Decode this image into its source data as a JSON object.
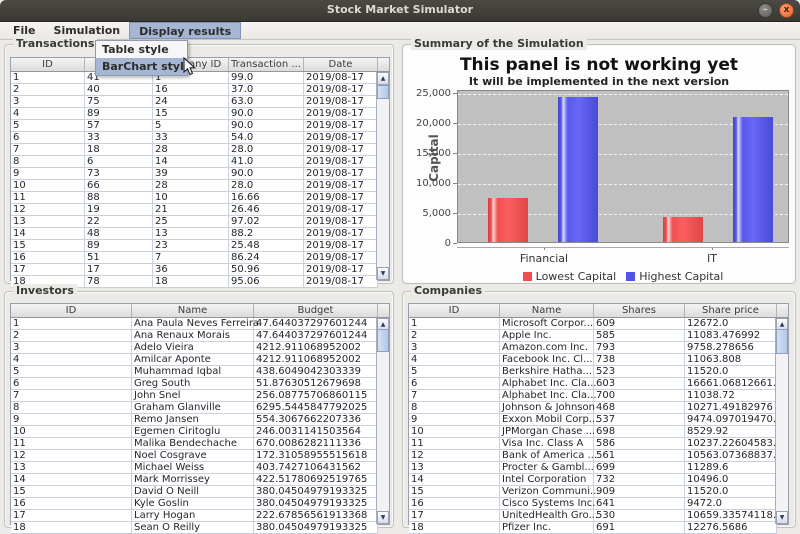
{
  "window": {
    "title": "Stock Market Simulator",
    "minimize": "–",
    "close": "x"
  },
  "menu_bar": {
    "items": [
      {
        "label": "File",
        "selected": false
      },
      {
        "label": "Simulation",
        "selected": false
      },
      {
        "label": "Display results",
        "selected": true
      }
    ]
  },
  "popup_menu": {
    "items": [
      {
        "label": "Table style",
        "highlighted": false
      },
      {
        "label": "BarChart style",
        "highlighted": true
      }
    ]
  },
  "panels": {
    "transactions": {
      "title": "Transactions",
      "columns": [
        "ID",
        "",
        "Company ID",
        "Transaction ...",
        "Date"
      ],
      "rows": [
        [
          "1",
          "41",
          "1",
          "99.0",
          "2019/08-17"
        ],
        [
          "2",
          "40",
          "16",
          "37.0",
          "2019/08-17"
        ],
        [
          "3",
          "75",
          "24",
          "63.0",
          "2019/08-17"
        ],
        [
          "4",
          "89",
          "15",
          "90.0",
          "2019/08-17"
        ],
        [
          "5",
          "57",
          "5",
          "90.0",
          "2019/08-17"
        ],
        [
          "6",
          "33",
          "33",
          "54.0",
          "2019/08-17"
        ],
        [
          "7",
          "18",
          "28",
          "28.0",
          "2019/08-17"
        ],
        [
          "8",
          "6",
          "14",
          "41.0",
          "2019/08-17"
        ],
        [
          "9",
          "73",
          "39",
          "90.0",
          "2019/08-17"
        ],
        [
          "10",
          "66",
          "28",
          "28.0",
          "2019/08-17"
        ],
        [
          "11",
          "88",
          "10",
          "16.66",
          "2019/08-17"
        ],
        [
          "12",
          "19",
          "21",
          "26.46",
          "2019/08-17"
        ],
        [
          "13",
          "22",
          "25",
          "97.02",
          "2019/08-17"
        ],
        [
          "14",
          "48",
          "13",
          "88.2",
          "2019/08-17"
        ],
        [
          "15",
          "89",
          "23",
          "25.48",
          "2019/08-17"
        ],
        [
          "16",
          "51",
          "7",
          "86.24",
          "2019/08-17"
        ],
        [
          "17",
          "17",
          "36",
          "50.96",
          "2019/08-17"
        ],
        [
          "18",
          "78",
          "18",
          "95.06",
          "2019/08-17"
        ]
      ]
    },
    "summary": {
      "title": "Summary of the Simulation"
    },
    "investors": {
      "title": "Investors",
      "columns": [
        "ID",
        "Name",
        "Budget"
      ],
      "rows": [
        [
          "1",
          "Ana Paula Neves Ferreira",
          "47.644037297601244"
        ],
        [
          "2",
          "Ana Renaux Morais",
          "47.644037297601244"
        ],
        [
          "3",
          "Adelo Vieira",
          "4212.911068952002"
        ],
        [
          "4",
          "Amilcar Aponte",
          "4212.911068952002"
        ],
        [
          "5",
          "Muhammad Iqbal",
          "438.6049042303339"
        ],
        [
          "6",
          "Greg South",
          "51.87630512679698"
        ],
        [
          "7",
          "John Snel",
          "256.08775706860115"
        ],
        [
          "8",
          "Graham Glanville",
          "6295.5445847792025"
        ],
        [
          "9",
          "Remo Jansen",
          "554.3067662207336"
        ],
        [
          "10",
          "Egemen Ciritoglu",
          "246.0031141503564"
        ],
        [
          "11",
          "Malika Bendechache",
          "670.0086282111336"
        ],
        [
          "12",
          "Noel Cosgrave",
          "172.31058955515618"
        ],
        [
          "13",
          "Michael Weiss",
          "403.7427106431562"
        ],
        [
          "14",
          "Mark Morrissey",
          "422.51780692519765"
        ],
        [
          "15",
          "David O Neill",
          "380.04504979193325"
        ],
        [
          "16",
          "Kyle Goslin",
          "380.04504979193325"
        ],
        [
          "17",
          "Larry Hogan",
          "222.67856561913368"
        ],
        [
          "18",
          "Sean O Reilly",
          "380.04504979193325"
        ]
      ]
    },
    "companies": {
      "title": "Companies",
      "columns": [
        "ID",
        "Name",
        "Shares",
        "Share price"
      ],
      "rows": [
        [
          "1",
          "Microsoft Corpor...",
          "609",
          "12672.0"
        ],
        [
          "2",
          "Apple Inc.",
          "585",
          "11083.476992"
        ],
        [
          "3",
          "Amazon.com Inc.",
          "793",
          "9758.278656"
        ],
        [
          "4",
          "Facebook Inc. Cl...",
          "738",
          "11063.808"
        ],
        [
          "5",
          "Berkshire Hatha...",
          "523",
          "11520.0"
        ],
        [
          "6",
          "Alphabet Inc. Cla...",
          "603",
          "16661.06812661..."
        ],
        [
          "7",
          "Alphabet Inc. Cla...",
          "700",
          "11038.72"
        ],
        [
          "8",
          "Johnson & Johnson",
          "468",
          "10271.49182976"
        ],
        [
          "9",
          "Exxon Mobil Corp...",
          "537",
          "9474.097019470..."
        ],
        [
          "10",
          "JPMorgan Chase ...",
          "698",
          "8529.92"
        ],
        [
          "11",
          "Visa Inc. Class A",
          "586",
          "10237.22604583..."
        ],
        [
          "12",
          "Bank of America ...",
          "561",
          "10563.07368837..."
        ],
        [
          "13",
          "Procter & Gambl...",
          "699",
          "11289.6"
        ],
        [
          "14",
          "Intel Corporation",
          "732",
          "10496.0"
        ],
        [
          "15",
          "Verizon Communi...",
          "909",
          "11520.0"
        ],
        [
          "16",
          "Cisco Systems Inc.",
          "641",
          "9472.0"
        ],
        [
          "17",
          "UnitedHealth Gro...",
          "530",
          "10659.33574118..."
        ],
        [
          "18",
          "Pfizer Inc.",
          "691",
          "12276.5686"
        ]
      ]
    }
  },
  "chart_data": {
    "type": "bar",
    "title": "This panel is not working yet",
    "subtitle": "It will be implemented in the next version",
    "ylabel": "Capital",
    "xlabel": "",
    "categories": [
      "Financial",
      "IT"
    ],
    "series": [
      {
        "name": "Lowest Capital",
        "color": "#f24c4c",
        "values": [
          7400,
          4100
        ]
      },
      {
        "name": "Highest Capital",
        "color": "#5353e8",
        "values": [
          24200,
          20900
        ]
      }
    ],
    "ylim": [
      0,
      25000
    ],
    "ytick_labels": [
      "0",
      "5,000",
      "10,000",
      "15,000",
      "20,000",
      "25,000"
    ],
    "grid": true,
    "legend_position": "bottom",
    "plot_bg": "#c0c0c0"
  }
}
